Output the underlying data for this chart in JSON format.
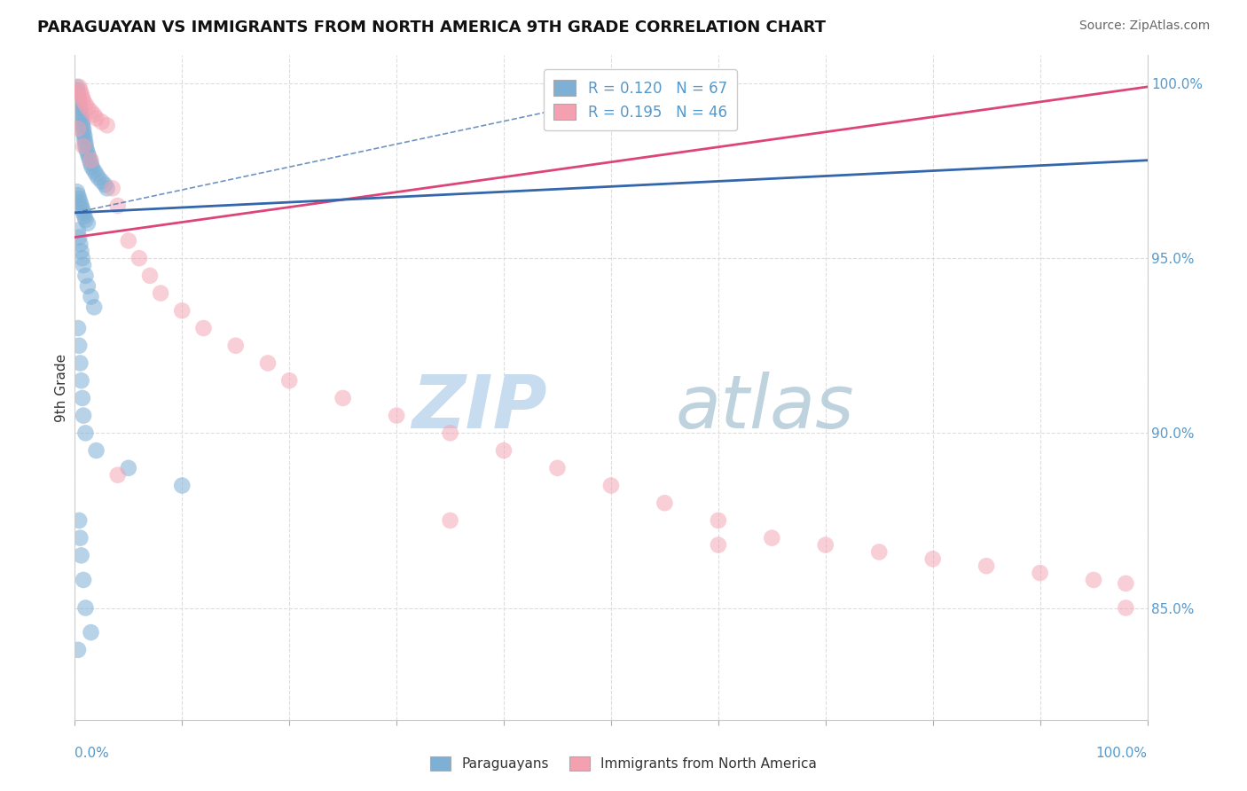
{
  "title": "PARAGUAYAN VS IMMIGRANTS FROM NORTH AMERICA 9TH GRADE CORRELATION CHART",
  "source": "Source: ZipAtlas.com",
  "ylabel": "9th Grade",
  "legend1_R": "0.120",
  "legend1_N": "67",
  "legend2_R": "0.195",
  "legend2_N": "46",
  "blue_color": "#7EB0D5",
  "pink_color": "#F4A0B0",
  "blue_line_color": "#3366AA",
  "pink_line_color": "#DD4477",
  "blue_scatter_alpha": 0.55,
  "pink_scatter_alpha": 0.5,
  "marker_size": 180,
  "xlim": [
    0.0,
    1.0
  ],
  "ylim": [
    0.818,
    1.008
  ],
  "yticks": [
    0.85,
    0.9,
    0.95,
    1.0
  ],
  "ytick_labels": [
    "85.0%",
    "90.0%",
    "95.0%",
    "100.0%"
  ],
  "grid_color": "#DDDDDD",
  "blue_x": [
    0.002,
    0.002,
    0.003,
    0.003,
    0.004,
    0.004,
    0.005,
    0.005,
    0.006,
    0.006,
    0.007,
    0.007,
    0.008,
    0.008,
    0.009,
    0.009,
    0.01,
    0.01,
    0.011,
    0.012,
    0.013,
    0.014,
    0.015,
    0.016,
    0.018,
    0.02,
    0.022,
    0.025,
    0.028,
    0.03,
    0.002,
    0.003,
    0.004,
    0.005,
    0.006,
    0.007,
    0.008,
    0.009,
    0.01,
    0.012,
    0.003,
    0.004,
    0.005,
    0.006,
    0.007,
    0.008,
    0.01,
    0.012,
    0.015,
    0.018,
    0.003,
    0.004,
    0.005,
    0.006,
    0.007,
    0.008,
    0.01,
    0.02,
    0.05,
    0.1,
    0.004,
    0.005,
    0.006,
    0.008,
    0.01,
    0.015,
    0.003
  ],
  "blue_y": [
    0.999,
    0.998,
    0.997,
    0.996,
    0.995,
    0.994,
    0.993,
    0.992,
    0.991,
    0.99,
    0.989,
    0.988,
    0.987,
    0.986,
    0.985,
    0.984,
    0.983,
    0.982,
    0.981,
    0.98,
    0.979,
    0.978,
    0.977,
    0.976,
    0.975,
    0.974,
    0.973,
    0.972,
    0.971,
    0.97,
    0.969,
    0.968,
    0.967,
    0.966,
    0.965,
    0.964,
    0.963,
    0.962,
    0.961,
    0.96,
    0.958,
    0.956,
    0.954,
    0.952,
    0.95,
    0.948,
    0.945,
    0.942,
    0.939,
    0.936,
    0.93,
    0.925,
    0.92,
    0.915,
    0.91,
    0.905,
    0.9,
    0.895,
    0.89,
    0.885,
    0.875,
    0.87,
    0.865,
    0.858,
    0.85,
    0.843,
    0.838
  ],
  "pink_x": [
    0.004,
    0.005,
    0.006,
    0.007,
    0.008,
    0.01,
    0.012,
    0.015,
    0.018,
    0.02,
    0.025,
    0.03,
    0.035,
    0.04,
    0.05,
    0.06,
    0.07,
    0.08,
    0.1,
    0.12,
    0.15,
    0.18,
    0.2,
    0.25,
    0.3,
    0.35,
    0.4,
    0.45,
    0.5,
    0.55,
    0.6,
    0.65,
    0.7,
    0.75,
    0.8,
    0.85,
    0.9,
    0.95,
    0.98,
    0.003,
    0.008,
    0.015,
    0.04,
    0.35,
    0.6,
    0.98
  ],
  "pink_y": [
    0.999,
    0.998,
    0.997,
    0.996,
    0.995,
    0.994,
    0.993,
    0.992,
    0.991,
    0.99,
    0.989,
    0.988,
    0.97,
    0.965,
    0.955,
    0.95,
    0.945,
    0.94,
    0.935,
    0.93,
    0.925,
    0.92,
    0.915,
    0.91,
    0.905,
    0.9,
    0.895,
    0.89,
    0.885,
    0.88,
    0.875,
    0.87,
    0.868,
    0.866,
    0.864,
    0.862,
    0.86,
    0.858,
    0.857,
    0.987,
    0.982,
    0.978,
    0.888,
    0.875,
    0.868,
    0.85
  ],
  "blue_trend": [
    0.965,
    0.978
  ],
  "pink_trend_start": 0.958,
  "pink_trend_end": 0.998
}
